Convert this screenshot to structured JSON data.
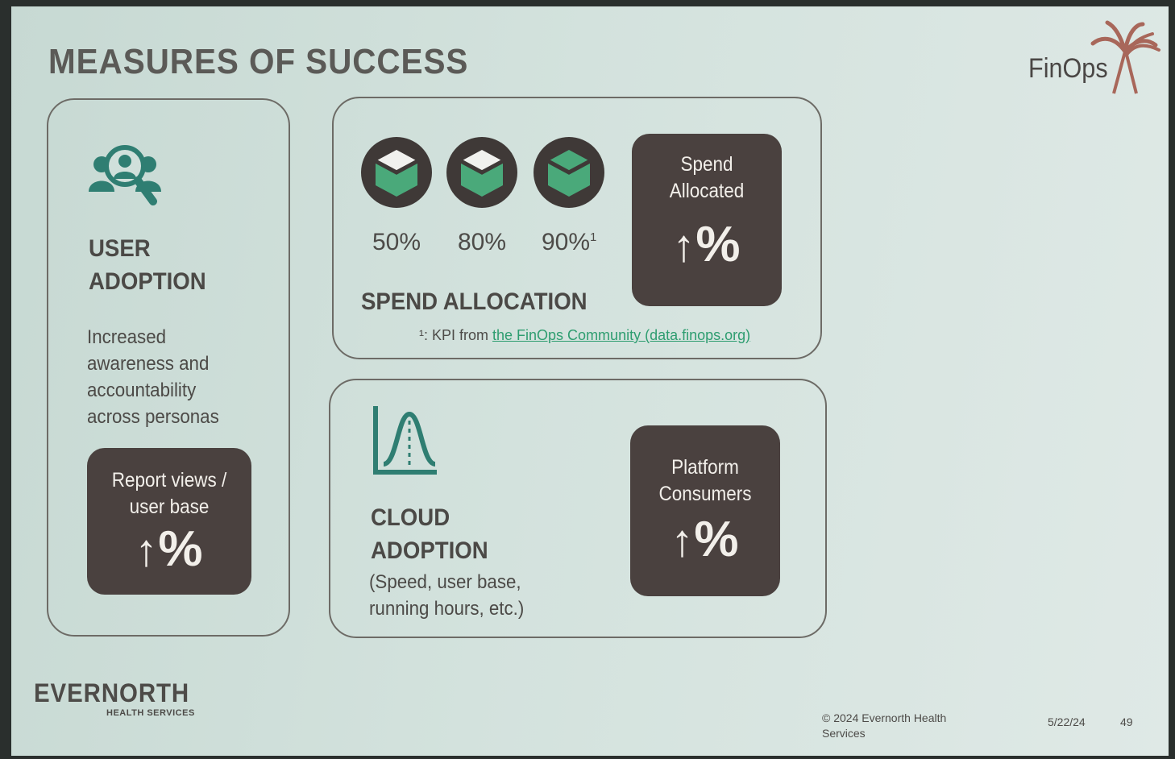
{
  "slide": {
    "title": "MEASURES OF SUCCESS",
    "logo_text": "FinOps",
    "user_adoption": {
      "heading_line1": "USER",
      "heading_line2": "ADOPTION",
      "description": [
        "Increased",
        "awareness and",
        "accountability",
        "across personas"
      ],
      "kpi_label_line1": "Report views /",
      "kpi_label_line2": "user base",
      "kpi_value": "%"
    },
    "spend_allocation": {
      "heading": "SPEND ALLOCATION",
      "percentages": [
        "50%",
        "80%",
        "90%"
      ],
      "superscript": "1",
      "kpi_label_line1": "Spend",
      "kpi_label_line2": "Allocated",
      "kpi_value": "%",
      "footnote_prefix": "¹: KPI from ",
      "footnote_link": "the FinOps Community (data.finops.org)"
    },
    "cloud_adoption": {
      "heading_line1": "CLOUD",
      "heading_line2": "ADOPTION",
      "description": [
        "(Speed, user base,",
        "running hours, etc.)"
      ],
      "kpi_label_line1": "Platform",
      "kpi_label_line2": "Consumers",
      "kpi_value": "%"
    },
    "footer": {
      "brand": "EVERNORTH",
      "brand_sub": "HEALTH SERVICES",
      "copyright_line1": "© 2024 Evernorth Health",
      "copyright_line2": "Services",
      "date": "5/22/24",
      "page": "49"
    },
    "colors": {
      "accent_green": "#4aa97a",
      "kpi_bg": "#4a413f",
      "icon_teal": "#2f7e72"
    },
    "icons": [
      "user-search-icon",
      "cube-icon",
      "bell-curve-chart-icon",
      "up-arrow-icon",
      "palm-tree-icon"
    ]
  }
}
